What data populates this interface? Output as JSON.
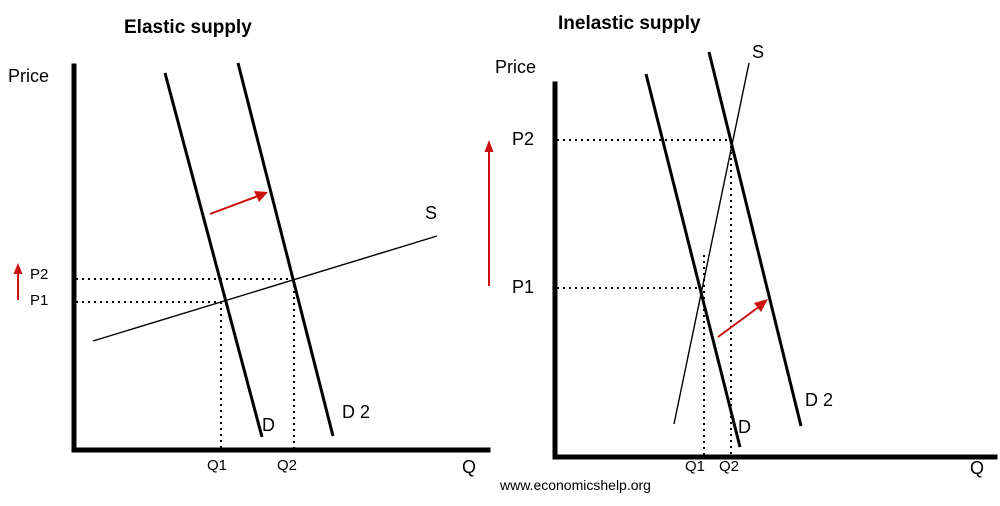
{
  "colors": {
    "lines": "#000000",
    "arrows": "#cc1111",
    "background": "#ffffff"
  },
  "left_panel": {
    "title": "Elastic supply",
    "y_axis_label": "Price",
    "x_axis_label": "Q",
    "supply_label": "S",
    "demand_label": "D",
    "demand2_label": "D 2",
    "price_labels": [
      "P2",
      "P1"
    ],
    "quantity_labels": [
      "Q1",
      "Q2"
    ]
  },
  "right_panel": {
    "title": "Inelastic supply",
    "y_axis_label": "Price",
    "x_axis_label": "Q",
    "supply_label": "S",
    "demand_label": "D",
    "demand2_label": "D 2",
    "price_labels": [
      "P2",
      "P1"
    ],
    "quantity_labels": [
      "Q1",
      "Q2"
    ]
  },
  "footer": {
    "source": "www.economicshelp.org"
  }
}
